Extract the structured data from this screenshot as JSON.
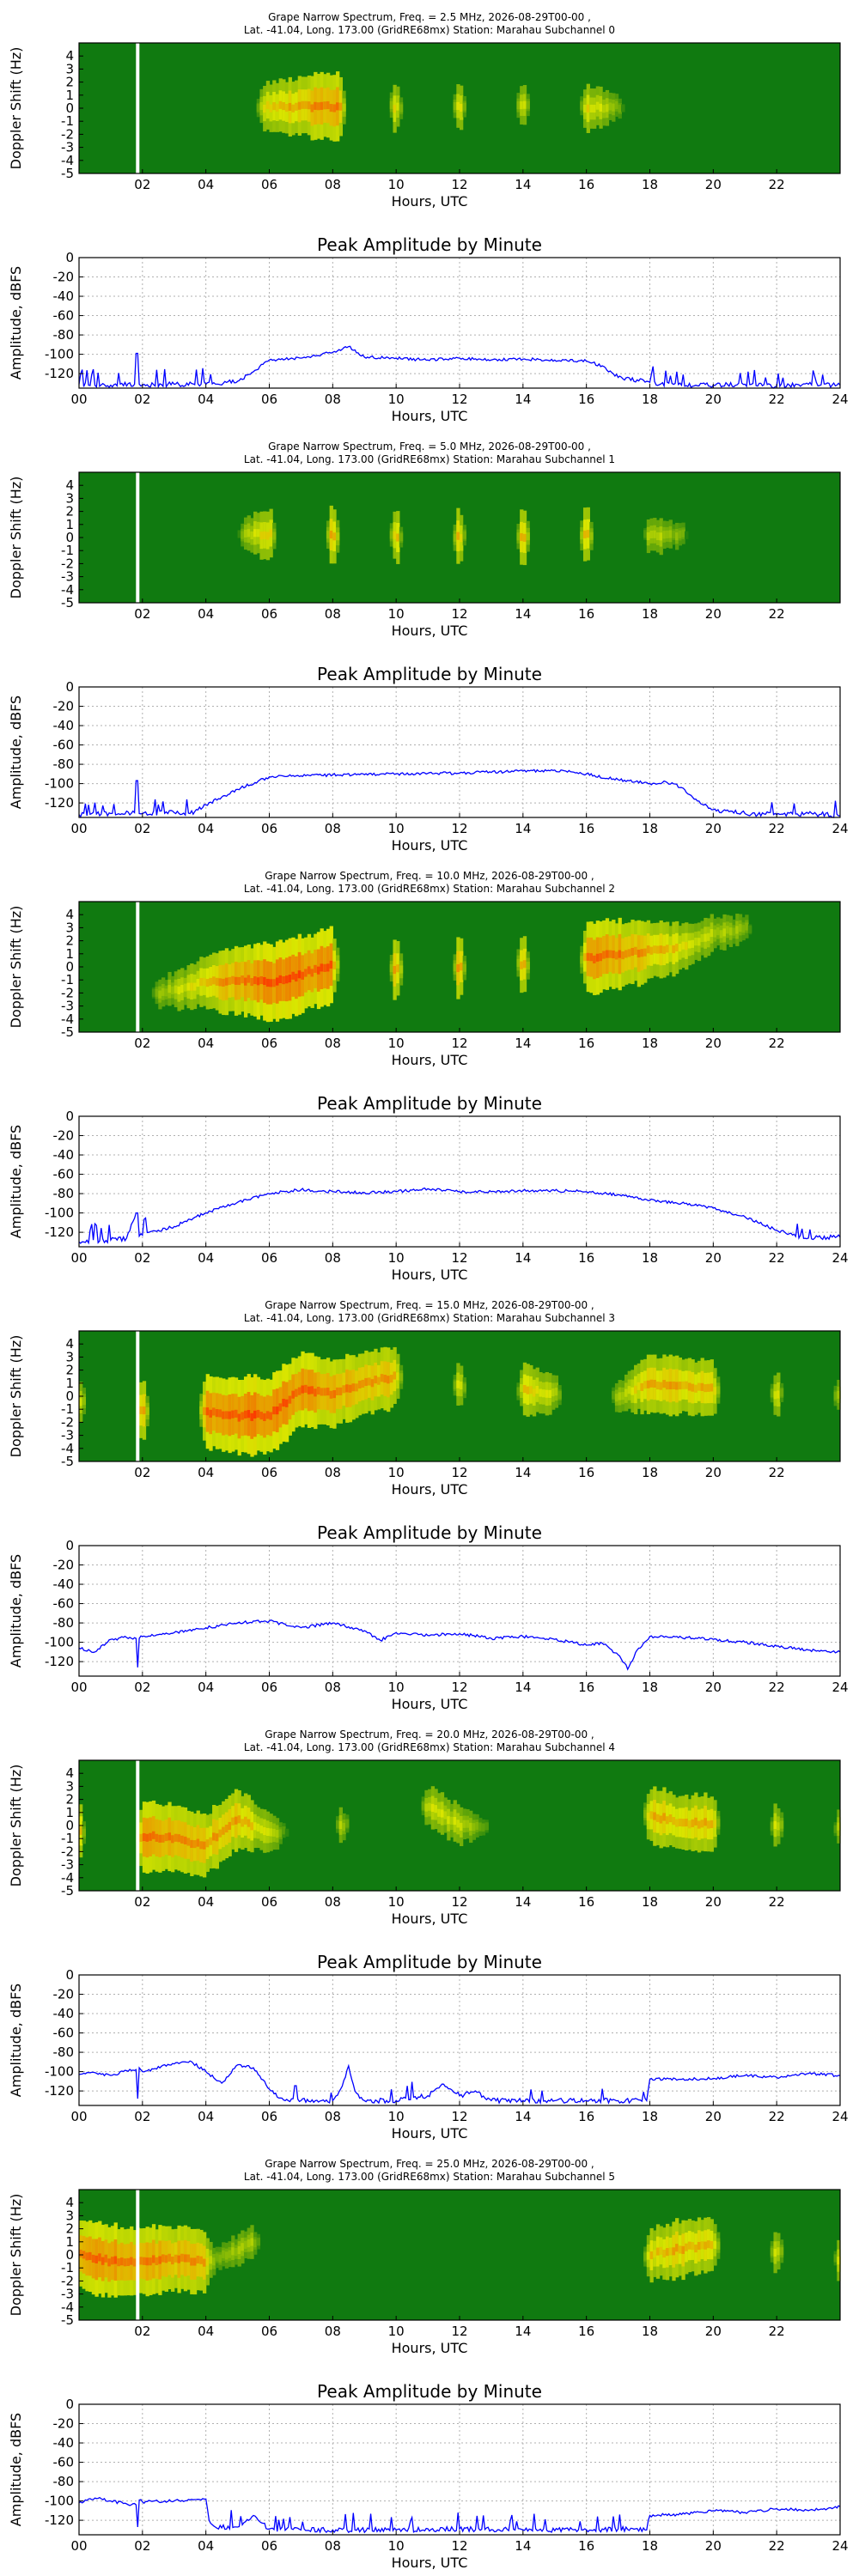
{
  "figure": {
    "spec_x_label": "Hours, UTC",
    "spec_y_label": "Doppler Shift (Hz)",
    "amp_title": "Peak Amplitude by Minute",
    "amp_x_label": "Hours, UTC",
    "amp_y_label": "Amplitude, dBFS",
    "spec_x_ticks": [
      "02",
      "04",
      "06",
      "08",
      "10",
      "12",
      "14",
      "16",
      "18",
      "20",
      "22"
    ],
    "spec_y_ticks": [
      "4",
      "3",
      "2",
      "1",
      "0",
      "-1",
      "-2",
      "-3",
      "-4",
      "-5"
    ],
    "amp_x_ticks": [
      "00",
      "02",
      "04",
      "06",
      "08",
      "10",
      "12",
      "14",
      "16",
      "18",
      "20",
      "22",
      "24"
    ],
    "amp_y_ticks": [
      "0",
      "-20",
      "-40",
      "-60",
      "-80",
      "-100",
      "-120"
    ],
    "colors": {
      "background": "#107a10",
      "signal_low": "#d9e600",
      "signal_high": "#ff2a00",
      "line": "#0000ff",
      "marker": "#ffffff"
    }
  },
  "chart_data": [
    {
      "type": "heatmap",
      "title_line1": "Grape Narrow Spectrum, Freq. = 2.5 MHz, 2026-08-29T00-00 ,",
      "title_line2": "Lat. -41.04, Long. 173.00 (GridRE68mx) Station: Marahau Subchannel 0",
      "xlabel": "Hours, UTC",
      "ylabel": "Doppler Shift (Hz)",
      "xlim": [
        0,
        24
      ],
      "ylim": [
        -5,
        5
      ],
      "marker_hour": 1.85,
      "ridge": [
        [
          5.8,
          0.1,
          0.55
        ],
        [
          7,
          0.1,
          0.7
        ],
        [
          8.2,
          0.1,
          0.85
        ],
        [
          10,
          0.1,
          0.65
        ],
        [
          12,
          0.1,
          0.6
        ],
        [
          14,
          0.1,
          0.6
        ],
        [
          16,
          0.1,
          0.55
        ],
        [
          17,
          0.1,
          0.3
        ]
      ]
    },
    {
      "type": "line",
      "title": "Peak Amplitude by Minute",
      "xlabel": "Hours, UTC",
      "ylabel": "Amplitude, dBFS",
      "xlim": [
        0,
        24
      ],
      "ylim": [
        -135,
        0
      ],
      "x": [
        0,
        1,
        1.75,
        1.8,
        1.85,
        1.9,
        2,
        3,
        4,
        5,
        5.5,
        6,
        7,
        8,
        8.5,
        9,
        10,
        11,
        12,
        13,
        14,
        15,
        16,
        16.5,
        17,
        18,
        19,
        20,
        21,
        22,
        23,
        24
      ],
      "y": [
        -131,
        -132,
        -131,
        -99,
        -99,
        -131,
        -132,
        -131,
        -131,
        -128,
        -118,
        -106,
        -104,
        -98,
        -92,
        -103,
        -104,
        -106,
        -104,
        -106,
        -105,
        -106,
        -107,
        -112,
        -124,
        -129,
        -132,
        -132,
        -131,
        -133,
        -131,
        -132
      ]
    },
    {
      "type": "heatmap",
      "title_line1": "Grape Narrow Spectrum, Freq. = 5.0 MHz, 2026-08-29T00-00 ,",
      "title_line2": "Lat. -41.04, Long. 173.00 (GridRE68mx) Station: Marahau Subchannel 1",
      "xlabel": "Hours, UTC",
      "ylabel": "Doppler Shift (Hz)",
      "xlim": [
        0,
        24
      ],
      "ylim": [
        -5,
        5
      ],
      "marker_hour": 1.85,
      "ridge": [
        [
          5.2,
          0.3,
          0.35
        ],
        [
          6,
          0.2,
          0.65
        ],
        [
          8,
          0.1,
          0.85
        ],
        [
          10,
          0.1,
          0.75
        ],
        [
          12,
          0.1,
          0.75
        ],
        [
          14,
          0.0,
          0.85
        ],
        [
          16,
          0.2,
          0.75
        ],
        [
          18,
          0.2,
          0.45
        ],
        [
          19,
          0.2,
          0.25
        ]
      ]
    },
    {
      "type": "line",
      "title": "Peak Amplitude by Minute",
      "xlabel": "Hours, UTC",
      "ylabel": "Amplitude, dBFS",
      "xlim": [
        0,
        24
      ],
      "ylim": [
        -135,
        0
      ],
      "x": [
        0,
        1,
        1.75,
        1.8,
        1.85,
        1.9,
        2,
        3,
        3.5,
        4,
        5,
        6,
        7,
        8,
        10,
        12,
        14,
        15,
        16,
        17,
        18,
        18.5,
        19,
        19.5,
        20,
        21,
        22,
        23,
        24
      ],
      "y": [
        -132,
        -131,
        -130,
        -97,
        -97,
        -131,
        -131,
        -130,
        -131,
        -122,
        -106,
        -93,
        -92,
        -91,
        -90,
        -89,
        -87,
        -86,
        -90,
        -96,
        -100,
        -98,
        -104,
        -118,
        -127,
        -131,
        -132,
        -131,
        -133
      ]
    },
    {
      "type": "heatmap",
      "title_line1": "Grape Narrow Spectrum, Freq. = 10.0 MHz, 2026-08-29T00-00 ,",
      "title_line2": "Lat. -41.04, Long. 173.00 (GridRE68mx) Station: Marahau Subchannel 2",
      "xlabel": "Hours, UTC",
      "ylabel": "Doppler Shift (Hz)",
      "xlim": [
        0,
        24
      ],
      "ylim": [
        -5,
        5
      ],
      "marker_hour": 1.85,
      "ridge": [
        [
          2.5,
          -2.0,
          0.3
        ],
        [
          4,
          -1.2,
          0.6
        ],
        [
          5,
          -1.0,
          0.8
        ],
        [
          6,
          -1.2,
          0.9
        ],
        [
          7,
          -0.6,
          0.9
        ],
        [
          8,
          0.2,
          0.85
        ],
        [
          10,
          -0.2,
          0.85
        ],
        [
          12,
          0.0,
          0.85
        ],
        [
          14,
          0.2,
          0.85
        ],
        [
          16,
          0.6,
          0.85
        ],
        [
          17,
          1.0,
          0.8
        ],
        [
          18,
          1.2,
          0.7
        ],
        [
          19,
          1.5,
          0.55
        ],
        [
          20,
          2.5,
          0.4
        ],
        [
          21,
          3.0,
          0.3
        ]
      ]
    },
    {
      "type": "line",
      "title": "Peak Amplitude by Minute",
      "xlabel": "Hours, UTC",
      "ylabel": "Amplitude, dBFS",
      "xlim": [
        0,
        24
      ],
      "ylim": [
        -135,
        0
      ],
      "x": [
        0,
        1,
        1.5,
        1.8,
        1.85,
        1.9,
        2,
        3,
        4,
        5,
        6,
        7,
        8,
        9,
        10,
        11,
        12,
        13,
        14,
        15,
        16,
        17,
        18,
        19,
        20,
        21,
        22,
        23,
        24
      ],
      "y": [
        -130,
        -128,
        -126,
        -100,
        -100,
        -124,
        -123,
        -114,
        -100,
        -89,
        -80,
        -76,
        -78,
        -79,
        -78,
        -75,
        -78,
        -78,
        -77,
        -77,
        -78,
        -81,
        -87,
        -90,
        -95,
        -104,
        -118,
        -126,
        -125
      ]
    },
    {
      "type": "heatmap",
      "title_line1": "Grape Narrow Spectrum, Freq. = 15.0 MHz, 2026-08-29T00-00 ,",
      "title_line2": "Lat. -41.04, Long. 173.00 (GridRE68mx) Station: Marahau Subchannel 3",
      "xlabel": "Hours, UTC",
      "ylabel": "Doppler Shift (Hz)",
      "xlim": [
        0,
        24
      ],
      "ylim": [
        -5,
        5
      ],
      "marker_hour": 1.85,
      "ridge": [
        [
          0,
          -0.5,
          0.65
        ],
        [
          2,
          -1.0,
          0.8
        ],
        [
          4,
          -1.2,
          0.85
        ],
        [
          5,
          -1.5,
          0.9
        ],
        [
          6,
          -1.5,
          0.9
        ],
        [
          7,
          0.5,
          0.85
        ],
        [
          8,
          0.2,
          0.8
        ],
        [
          9,
          1.0,
          0.7
        ],
        [
          10,
          1.5,
          0.7
        ],
        [
          12,
          0.8,
          0.65
        ],
        [
          14,
          0.5,
          0.6
        ],
        [
          15,
          0.2,
          0.45
        ],
        [
          17,
          0.0,
          0.35
        ],
        [
          18,
          1.0,
          0.7
        ],
        [
          19,
          0.8,
          0.65
        ],
        [
          20,
          0.5,
          0.65
        ],
        [
          22,
          0.2,
          0.6
        ],
        [
          24,
          0.0,
          0.5
        ]
      ]
    },
    {
      "type": "line",
      "title": "Peak Amplitude by Minute",
      "xlabel": "Hours, UTC",
      "ylabel": "Amplitude, dBFS",
      "xlim": [
        0,
        24
      ],
      "ylim": [
        -135,
        0
      ],
      "x": [
        0,
        0.5,
        1,
        1.5,
        1.8,
        1.85,
        1.9,
        2,
        3,
        4,
        5,
        6,
        7,
        8,
        9,
        9.5,
        10,
        11,
        12,
        13,
        14,
        15,
        16,
        16.5,
        17,
        17.3,
        17.6,
        18,
        19,
        20,
        21,
        22,
        23,
        24
      ],
      "y": [
        -106,
        -110,
        -97,
        -95,
        -96,
        -126,
        -96,
        -94,
        -90,
        -85,
        -80,
        -78,
        -85,
        -80,
        -88,
        -98,
        -90,
        -93,
        -91,
        -96,
        -94,
        -97,
        -103,
        -101,
        -113,
        -128,
        -108,
        -94,
        -95,
        -97,
        -100,
        -104,
        -108,
        -110
      ]
    },
    {
      "type": "heatmap",
      "title_line1": "Grape Narrow Spectrum, Freq. = 20.0 MHz, 2026-08-29T00-00 ,",
      "title_line2": "Lat. -41.04, Long. 173.00 (GridRE68mx) Station: Marahau Subchannel 4",
      "xlabel": "Hours, UTC",
      "ylabel": "Doppler Shift (Hz)",
      "xlim": [
        0,
        24
      ],
      "ylim": [
        -5,
        5
      ],
      "marker_hour": 1.85,
      "ridge": [
        [
          0,
          -0.5,
          0.75
        ],
        [
          2,
          -0.8,
          0.8
        ],
        [
          3,
          -1.0,
          0.8
        ],
        [
          4,
          -1.5,
          0.7
        ],
        [
          5,
          0.5,
          0.7
        ],
        [
          6,
          -0.5,
          0.45
        ],
        [
          6.4,
          -0.5,
          0.25
        ],
        [
          8.3,
          0.0,
          0.45
        ],
        [
          11,
          1.5,
          0.45
        ],
        [
          12,
          0.0,
          0.45
        ],
        [
          12.7,
          0.0,
          0.25
        ],
        [
          18,
          0.8,
          0.65
        ],
        [
          19,
          0.2,
          0.65
        ],
        [
          20,
          0.2,
          0.65
        ],
        [
          22,
          0.0,
          0.6
        ],
        [
          24,
          -0.2,
          0.5
        ]
      ]
    },
    {
      "type": "line",
      "title": "Peak Amplitude by Minute",
      "xlabel": "Hours, UTC",
      "ylabel": "Amplitude, dBFS",
      "xlim": [
        0,
        24
      ],
      "ylim": [
        -135,
        0
      ],
      "x": [
        0,
        0.5,
        1,
        1.5,
        1.8,
        1.85,
        1.9,
        2,
        3,
        3.5,
        4,
        4.5,
        5,
        5.5,
        6,
        6.5,
        7,
        8,
        8.3,
        8.5,
        8.7,
        9,
        10,
        11,
        11.5,
        12,
        12.5,
        13,
        14,
        15,
        16,
        17,
        17.9,
        18,
        19,
        20,
        21,
        22,
        23,
        24
      ],
      "y": [
        -103,
        -101,
        -104,
        -99,
        -98,
        -128,
        -96,
        -100,
        -92,
        -89,
        -100,
        -112,
        -93,
        -96,
        -118,
        -130,
        -130,
        -130,
        -115,
        -94,
        -120,
        -130,
        -130,
        -125,
        -113,
        -125,
        -120,
        -130,
        -130,
        -130,
        -130,
        -130,
        -130,
        -108,
        -108,
        -107,
        -104,
        -106,
        -102,
        -104
      ]
    },
    {
      "type": "heatmap",
      "title_line1": "Grape Narrow Spectrum, Freq. = 25.0 MHz, 2026-08-29T00-00 ,",
      "title_line2": "Lat. -41.04, Long. 173.00 (GridRE68mx) Station: Marahau Subchannel 5",
      "xlabel": "Hours, UTC",
      "ylabel": "Doppler Shift (Hz)",
      "xlim": [
        0,
        24
      ],
      "ylim": [
        -5,
        5
      ],
      "marker_hour": 1.85,
      "ridge": [
        [
          0,
          0.0,
          0.8
        ],
        [
          1,
          -0.5,
          0.85
        ],
        [
          2,
          -0.5,
          0.8
        ],
        [
          3,
          -0.3,
          0.75
        ],
        [
          4,
          -0.5,
          0.7
        ],
        [
          4.2,
          -0.5,
          0.3
        ],
        [
          5.5,
          1.0,
          0.35
        ],
        [
          18,
          0.0,
          0.6
        ],
        [
          19,
          0.5,
          0.65
        ],
        [
          20,
          0.8,
          0.65
        ],
        [
          22,
          0.2,
          0.6
        ],
        [
          24,
          -0.3,
          0.55
        ]
      ]
    },
    {
      "type": "line",
      "title": "Peak Amplitude by Minute",
      "xlabel": "Hours, UTC",
      "ylabel": "Amplitude, dBFS",
      "xlim": [
        0,
        24
      ],
      "ylim": [
        -135,
        0
      ],
      "x": [
        0,
        0.5,
        1,
        1.5,
        1.8,
        1.85,
        1.9,
        2,
        3,
        4,
        4.1,
        4.3,
        5,
        5.5,
        6,
        7,
        8,
        10,
        12,
        14,
        16,
        17,
        17.9,
        18,
        19,
        20,
        21,
        22,
        23,
        24
      ],
      "y": [
        -102,
        -97,
        -100,
        -103,
        -104,
        -127,
        -99,
        -101,
        -100,
        -98,
        -120,
        -127,
        -127,
        -115,
        -129,
        -130,
        -130,
        -130,
        -129,
        -130,
        -130,
        -129,
        -130,
        -115,
        -114,
        -110,
        -112,
        -108,
        -110,
        -106
      ]
    }
  ]
}
